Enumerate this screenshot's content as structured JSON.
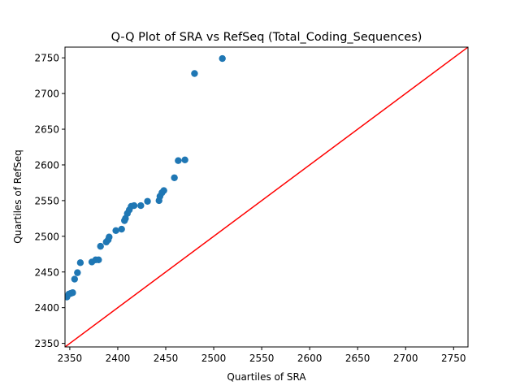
{
  "chart_data": {
    "type": "scatter",
    "title": "Q-Q Plot of SRA vs RefSeq (Total_Coding_Sequences)",
    "xlabel": "Quartiles of SRA",
    "ylabel": "Quartiles of RefSeq",
    "xlim": [
      2345,
      2765
    ],
    "ylim": [
      2345,
      2765
    ],
    "xticks": [
      2350,
      2400,
      2450,
      2500,
      2550,
      2600,
      2650,
      2700,
      2750
    ],
    "yticks": [
      2350,
      2400,
      2450,
      2500,
      2550,
      2600,
      2650,
      2700,
      2750
    ],
    "grid": false,
    "point_color": "#1f77b4",
    "reference_line": {
      "type": "y=x",
      "color": "#ff0000"
    },
    "points": [
      {
        "x": 2347,
        "y": 2415
      },
      {
        "x": 2349,
        "y": 2419
      },
      {
        "x": 2351,
        "y": 2420
      },
      {
        "x": 2353,
        "y": 2421
      },
      {
        "x": 2355,
        "y": 2440
      },
      {
        "x": 2358,
        "y": 2449
      },
      {
        "x": 2361,
        "y": 2463
      },
      {
        "x": 2373,
        "y": 2464
      },
      {
        "x": 2377,
        "y": 2467
      },
      {
        "x": 2380,
        "y": 2467
      },
      {
        "x": 2382,
        "y": 2486
      },
      {
        "x": 2388,
        "y": 2492
      },
      {
        "x": 2390,
        "y": 2495
      },
      {
        "x": 2391,
        "y": 2499
      },
      {
        "x": 2398,
        "y": 2508
      },
      {
        "x": 2404,
        "y": 2510
      },
      {
        "x": 2407,
        "y": 2522
      },
      {
        "x": 2408,
        "y": 2525
      },
      {
        "x": 2410,
        "y": 2532
      },
      {
        "x": 2412,
        "y": 2537
      },
      {
        "x": 2414,
        "y": 2542
      },
      {
        "x": 2417,
        "y": 2543
      },
      {
        "x": 2424,
        "y": 2543
      },
      {
        "x": 2431,
        "y": 2549
      },
      {
        "x": 2443,
        "y": 2550
      },
      {
        "x": 2444,
        "y": 2556
      },
      {
        "x": 2446,
        "y": 2561
      },
      {
        "x": 2448,
        "y": 2564
      },
      {
        "x": 2459,
        "y": 2582
      },
      {
        "x": 2463,
        "y": 2606
      },
      {
        "x": 2470,
        "y": 2607
      },
      {
        "x": 2480,
        "y": 2728
      },
      {
        "x": 2509,
        "y": 2749
      }
    ]
  }
}
